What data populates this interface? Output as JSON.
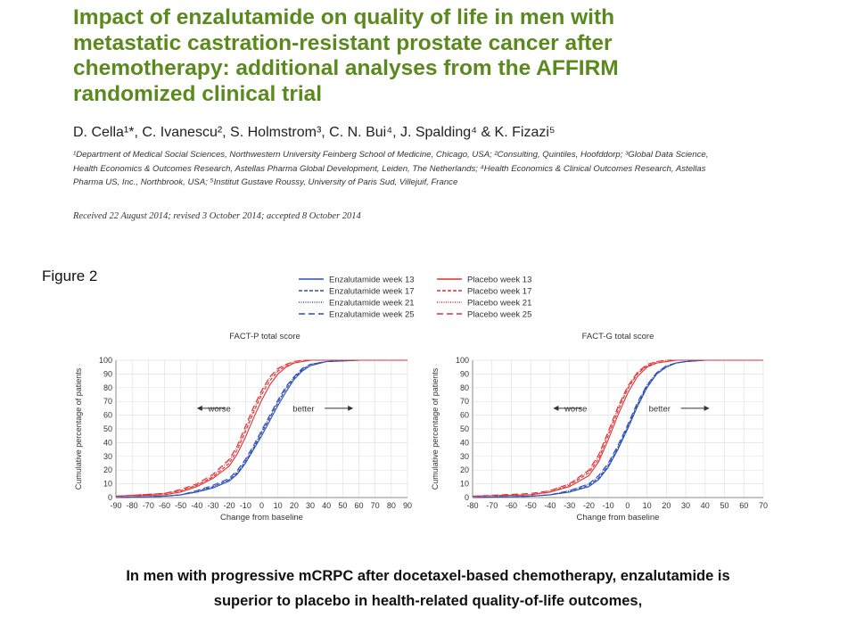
{
  "paper": {
    "title_lines": [
      "Impact of enzalutamide on quality of life in men with",
      "metastatic castration-resistant prostate cancer after",
      "chemotherapy: additional analyses from the AFFIRM",
      "randomized clinical trial"
    ],
    "authors": "D. Cella¹*, C. Ivanescu², S. Holmstrom³, C. N. Bui⁴, J. Spalding⁴ & K. Fizazi⁵",
    "affiliations": [
      "¹Department of Medical Social Sciences, Northwestern University Feinberg School of Medicine, Chicago, USA; ²Consulting, Quintiles, Hoofddorp; ³Global Data Science,",
      "Health Economics & Outcomes Research, Astellas Pharma Global Development, Leiden, The Netherlands; ⁴Health Economics & Clinical Outcomes Research, Astellas",
      "Pharma US, Inc., Northbrook, USA; ⁵Institut Gustave Roussy, University of Paris Sud, Villejuif, France"
    ],
    "received": "Received 22 August 2014; revised 3 October 2014; accepted 8 October 2014",
    "figure_label": "Figure 2",
    "caption_lines": [
      "In men with progressive mCRPC after docetaxel-based chemotherapy, enzalutamide is",
      "superior to placebo in health-related quality-of-life outcomes,"
    ]
  },
  "legend": {
    "entries": [
      {
        "label": "Enzalutamide week 13",
        "color": "#2b4fb5",
        "dash": "solid"
      },
      {
        "label": "Enzalutamide week 17",
        "color": "#2b4fb5",
        "dash": "dashed"
      },
      {
        "label": "Enzalutamide week 21",
        "color": "#2b4fb5",
        "dash": "dotted"
      },
      {
        "label": "Enzalutamide week 25",
        "color": "#2b4fb5",
        "dash": "longdash"
      },
      {
        "label": "Placebo week 13",
        "color": "#e03131",
        "dash": "solid"
      },
      {
        "label": "Placebo week 17",
        "color": "#e03131",
        "dash": "dashed"
      },
      {
        "label": "Placebo week 21",
        "color": "#e03131",
        "dash": "dotted"
      },
      {
        "label": "Placebo week 25",
        "color": "#e03131",
        "dash": "longdash"
      }
    ]
  },
  "chart_data": [
    {
      "type": "line",
      "title": "FACT-P total score",
      "xlabel": "Change from baseline",
      "ylabel": "Cumulative percentage of patients",
      "xlim": [
        -90,
        90
      ],
      "ylim": [
        0,
        100
      ],
      "xticks": [
        -90,
        -80,
        -70,
        -60,
        -50,
        -40,
        -30,
        -20,
        -10,
        0,
        10,
        20,
        30,
        40,
        50,
        60,
        70,
        80,
        90
      ],
      "yticks": [
        0,
        10,
        20,
        30,
        40,
        50,
        60,
        70,
        80,
        90,
        100
      ],
      "annotations": {
        "left": "worse",
        "right": "better"
      },
      "grid": true,
      "series": [
        {
          "name": "Enzalutamide week 13",
          "x": [
            -90,
            -60,
            -50,
            -40,
            -30,
            -20,
            -15,
            -10,
            -5,
            0,
            5,
            10,
            15,
            20,
            25,
            30,
            40,
            60,
            90
          ],
          "y": [
            0,
            1,
            2,
            4,
            7,
            12,
            17,
            25,
            35,
            45,
            56,
            67,
            77,
            86,
            92,
            96,
            99,
            100,
            100
          ]
        },
        {
          "name": "Enzalutamide week 17",
          "x": [
            -90,
            -60,
            -50,
            -40,
            -30,
            -20,
            -15,
            -10,
            -5,
            0,
            5,
            10,
            15,
            20,
            25,
            30,
            40,
            60,
            90
          ],
          "y": [
            0,
            1,
            2,
            4,
            8,
            13,
            18,
            26,
            36,
            47,
            58,
            69,
            79,
            87,
            93,
            97,
            99,
            100,
            100
          ]
        },
        {
          "name": "Enzalutamide week 21",
          "x": [
            -90,
            -60,
            -50,
            -40,
            -30,
            -20,
            -15,
            -10,
            -5,
            0,
            5,
            10,
            15,
            20,
            25,
            30,
            40,
            60,
            90
          ],
          "y": [
            0,
            1,
            2,
            5,
            8,
            13,
            19,
            27,
            37,
            48,
            59,
            70,
            80,
            88,
            93,
            97,
            99,
            100,
            100
          ]
        },
        {
          "name": "Enzalutamide week 25",
          "x": [
            -90,
            -60,
            -50,
            -40,
            -30,
            -20,
            -15,
            -10,
            -5,
            0,
            5,
            10,
            15,
            20,
            25,
            30,
            40,
            60,
            90
          ],
          "y": [
            0,
            1,
            2,
            5,
            9,
            14,
            20,
            28,
            38,
            49,
            60,
            71,
            81,
            88,
            94,
            97,
            99,
            100,
            100
          ]
        },
        {
          "name": "Placebo week 13",
          "x": [
            -90,
            -60,
            -50,
            -40,
            -30,
            -20,
            -15,
            -10,
            -5,
            0,
            5,
            10,
            15,
            20,
            25,
            30,
            40,
            60,
            90
          ],
          "y": [
            1,
            2,
            4,
            8,
            14,
            23,
            32,
            44,
            58,
            71,
            82,
            90,
            95,
            98,
            99,
            100,
            100,
            100,
            100
          ]
        },
        {
          "name": "Placebo week 17",
          "x": [
            -90,
            -60,
            -50,
            -40,
            -30,
            -20,
            -15,
            -10,
            -5,
            0,
            5,
            10,
            15,
            20,
            25,
            30,
            40,
            60,
            90
          ],
          "y": [
            1,
            3,
            5,
            9,
            15,
            25,
            35,
            48,
            62,
            75,
            85,
            92,
            96,
            98,
            99,
            100,
            100,
            100,
            100
          ]
        },
        {
          "name": "Placebo week 21",
          "x": [
            -90,
            -60,
            -50,
            -40,
            -30,
            -20,
            -15,
            -10,
            -5,
            0,
            5,
            10,
            15,
            20,
            25,
            30,
            40,
            60,
            90
          ],
          "y": [
            1,
            3,
            5,
            9,
            16,
            27,
            37,
            50,
            64,
            77,
            87,
            93,
            97,
            99,
            100,
            100,
            100,
            100,
            100
          ]
        },
        {
          "name": "Placebo week 25",
          "x": [
            -90,
            -60,
            -50,
            -40,
            -30,
            -20,
            -15,
            -10,
            -5,
            0,
            5,
            10,
            15,
            20,
            25,
            30,
            40,
            60,
            90
          ],
          "y": [
            1,
            3,
            6,
            10,
            17,
            28,
            38,
            52,
            66,
            78,
            88,
            94,
            97,
            99,
            100,
            100,
            100,
            100,
            100
          ]
        }
      ]
    },
    {
      "type": "line",
      "title": "FACT-G total score",
      "xlabel": "Change from baseline",
      "ylabel": "Cumulative percentage of patients",
      "xlim": [
        -80,
        70
      ],
      "ylim": [
        0,
        100
      ],
      "xticks": [
        -80,
        -70,
        -60,
        -50,
        -40,
        -30,
        -20,
        -10,
        0,
        10,
        20,
        30,
        40,
        50,
        60,
        70
      ],
      "yticks": [
        0,
        10,
        20,
        30,
        40,
        50,
        60,
        70,
        80,
        90,
        100
      ],
      "annotations": {
        "left": "worse",
        "right": "better"
      },
      "grid": true,
      "series": [
        {
          "name": "Enzalutamide week 13",
          "x": [
            -80,
            -50,
            -40,
            -30,
            -20,
            -15,
            -10,
            -5,
            0,
            5,
            10,
            15,
            20,
            25,
            30,
            40,
            60,
            70
          ],
          "y": [
            0,
            1,
            2,
            4,
            8,
            13,
            22,
            35,
            50,
            66,
            80,
            90,
            95,
            98,
            99,
            100,
            100,
            100
          ]
        },
        {
          "name": "Enzalutamide week 17",
          "x": [
            -80,
            -50,
            -40,
            -30,
            -20,
            -15,
            -10,
            -5,
            0,
            5,
            10,
            15,
            20,
            25,
            30,
            40,
            60,
            70
          ],
          "y": [
            0,
            1,
            2,
            4,
            9,
            14,
            23,
            36,
            51,
            67,
            81,
            90,
            95,
            98,
            99,
            100,
            100,
            100
          ]
        },
        {
          "name": "Enzalutamide week 21",
          "x": [
            -80,
            -50,
            -40,
            -30,
            -20,
            -15,
            -10,
            -5,
            0,
            5,
            10,
            15,
            20,
            25,
            30,
            40,
            60,
            70
          ],
          "y": [
            0,
            1,
            2,
            5,
            10,
            15,
            24,
            37,
            52,
            68,
            82,
            91,
            96,
            98,
            99,
            100,
            100,
            100
          ]
        },
        {
          "name": "Enzalutamide week 25",
          "x": [
            -80,
            -50,
            -40,
            -30,
            -20,
            -15,
            -10,
            -5,
            0,
            5,
            10,
            15,
            20,
            25,
            30,
            40,
            60,
            70
          ],
          "y": [
            0,
            1,
            2,
            5,
            10,
            16,
            25,
            38,
            53,
            69,
            82,
            91,
            96,
            98,
            99,
            100,
            100,
            100
          ]
        },
        {
          "name": "Placebo week 13",
          "x": [
            -80,
            -50,
            -40,
            -30,
            -20,
            -15,
            -10,
            -5,
            0,
            5,
            10,
            15,
            20,
            25,
            30,
            40,
            60,
            70
          ],
          "y": [
            1,
            2,
            4,
            8,
            16,
            26,
            42,
            60,
            76,
            88,
            95,
            98,
            99,
            100,
            100,
            100,
            100,
            100
          ]
        },
        {
          "name": "Placebo week 17",
          "x": [
            -80,
            -50,
            -40,
            -30,
            -20,
            -15,
            -10,
            -5,
            0,
            5,
            10,
            15,
            20,
            25,
            30,
            40,
            60,
            70
          ],
          "y": [
            1,
            2,
            4,
            9,
            18,
            28,
            45,
            63,
            79,
            90,
            96,
            98,
            99,
            100,
            100,
            100,
            100,
            100
          ]
        },
        {
          "name": "Placebo week 21",
          "x": [
            -80,
            -50,
            -40,
            -30,
            -20,
            -15,
            -10,
            -5,
            0,
            5,
            10,
            15,
            20,
            25,
            30,
            40,
            60,
            70
          ],
          "y": [
            1,
            2,
            5,
            10,
            19,
            30,
            47,
            65,
            80,
            91,
            96,
            99,
            100,
            100,
            100,
            100,
            100,
            100
          ]
        },
        {
          "name": "Placebo week 25",
          "x": [
            -80,
            -50,
            -40,
            -30,
            -20,
            -15,
            -10,
            -5,
            0,
            5,
            10,
            15,
            20,
            25,
            30,
            40,
            60,
            70
          ],
          "y": [
            1,
            3,
            5,
            10,
            20,
            31,
            48,
            66,
            81,
            91,
            97,
            99,
            100,
            100,
            100,
            100,
            100,
            100
          ]
        }
      ]
    }
  ]
}
